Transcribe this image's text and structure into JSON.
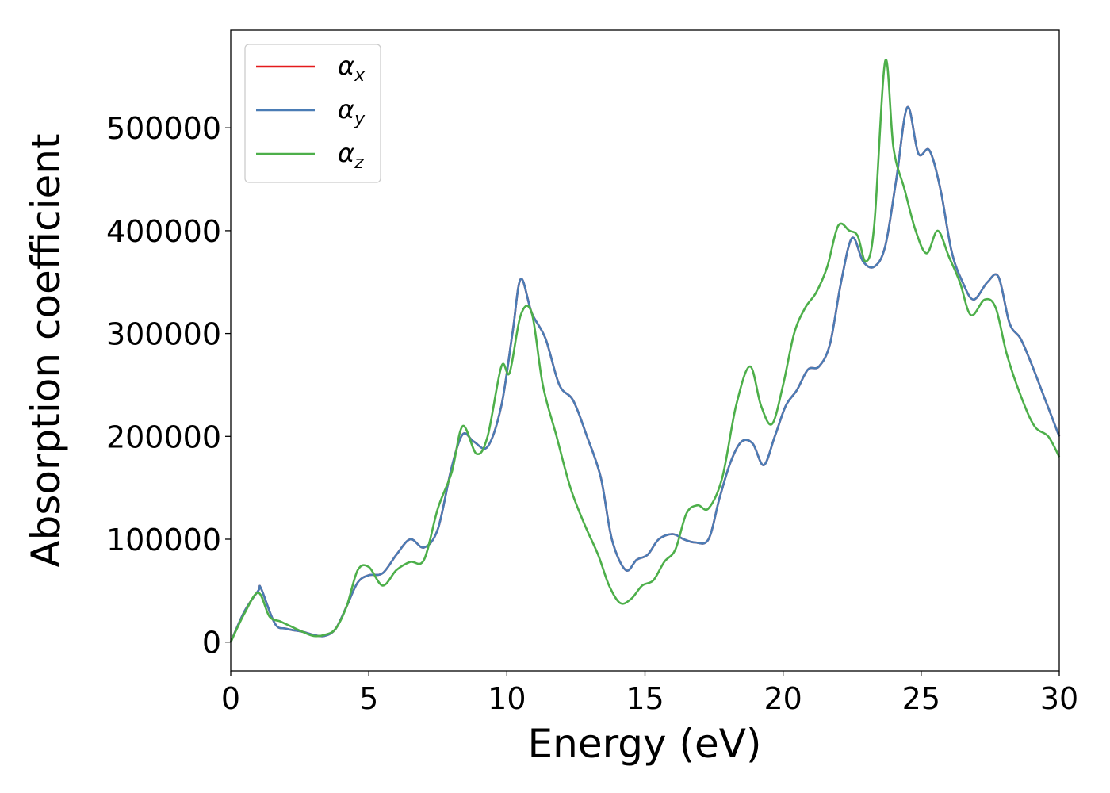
{
  "chart_data": {
    "type": "line",
    "title": "",
    "xlabel": "Energy (eV)",
    "ylabel": "Absorption coefficient",
    "xlim": [
      0,
      30
    ],
    "ylim": [
      -28000,
      595000
    ],
    "xticks": [
      0,
      5,
      10,
      15,
      20,
      25,
      30
    ],
    "yticks": [
      0,
      100000,
      200000,
      300000,
      400000,
      500000
    ],
    "grid": false,
    "legend_position": "top-left",
    "series": [
      {
        "name": "x",
        "symbol": "α",
        "color": "#e41a1c",
        "x": [
          0,
          0.5,
          1.0,
          1.1,
          1.6,
          2.0,
          2.6,
          3.0,
          3.4,
          3.8,
          4.2,
          4.6,
          5.0,
          5.5,
          6.0,
          6.5,
          7.0,
          7.5,
          8.0,
          8.4,
          8.8,
          9.3,
          9.8,
          10.2,
          10.5,
          10.9,
          11.4,
          11.9,
          12.4,
          12.9,
          13.4,
          13.8,
          14.3,
          14.7,
          15.1,
          15.5,
          16.0,
          16.4,
          16.8,
          17.3,
          17.7,
          18.1,
          18.5,
          18.9,
          19.3,
          19.7,
          20.1,
          20.5,
          20.9,
          21.3,
          21.7,
          22.1,
          22.5,
          22.9,
          23.3,
          23.7,
          24.1,
          24.5,
          24.9,
          25.3,
          25.7,
          26.1,
          26.5,
          26.9,
          27.4,
          27.8,
          28.2,
          28.6,
          29.0,
          29.5,
          30.0
        ],
        "values": [
          0,
          30000,
          50000,
          52000,
          18000,
          13000,
          10000,
          7000,
          6000,
          13000,
          35000,
          58000,
          65000,
          67000,
          85000,
          100000,
          92000,
          110000,
          170000,
          202000,
          195000,
          190000,
          230000,
          300000,
          353000,
          320000,
          295000,
          250000,
          235000,
          200000,
          160000,
          100000,
          70000,
          80000,
          85000,
          100000,
          105000,
          100000,
          97000,
          100000,
          140000,
          175000,
          195000,
          193000,
          172000,
          200000,
          230000,
          245000,
          265000,
          268000,
          290000,
          350000,
          393000,
          370000,
          365000,
          385000,
          450000,
          520000,
          475000,
          478000,
          440000,
          380000,
          350000,
          333000,
          350000,
          355000,
          310000,
          295000,
          270000,
          235000,
          200000
        ]
      },
      {
        "name": "y",
        "symbol": "α",
        "color": "#4a7cb5",
        "x": [
          0,
          0.5,
          1.0,
          1.1,
          1.6,
          2.0,
          2.6,
          3.0,
          3.4,
          3.8,
          4.2,
          4.6,
          5.0,
          5.5,
          6.0,
          6.5,
          7.0,
          7.5,
          8.0,
          8.4,
          8.8,
          9.3,
          9.8,
          10.2,
          10.5,
          10.9,
          11.4,
          11.9,
          12.4,
          12.9,
          13.4,
          13.8,
          14.3,
          14.7,
          15.1,
          15.5,
          16.0,
          16.4,
          16.8,
          17.3,
          17.7,
          18.1,
          18.5,
          18.9,
          19.3,
          19.7,
          20.1,
          20.5,
          20.9,
          21.3,
          21.7,
          22.1,
          22.5,
          22.9,
          23.3,
          23.7,
          24.1,
          24.5,
          24.9,
          25.3,
          25.7,
          26.1,
          26.5,
          26.9,
          27.4,
          27.8,
          28.2,
          28.6,
          29.0,
          29.5,
          30.0
        ],
        "values": [
          0,
          30000,
          50000,
          52000,
          18000,
          13000,
          10000,
          7000,
          6000,
          13000,
          35000,
          58000,
          65000,
          67000,
          85000,
          100000,
          92000,
          110000,
          170000,
          202000,
          195000,
          190000,
          230000,
          300000,
          353000,
          320000,
          295000,
          250000,
          235000,
          200000,
          160000,
          100000,
          70000,
          80000,
          85000,
          100000,
          105000,
          100000,
          97000,
          100000,
          140000,
          175000,
          195000,
          193000,
          172000,
          200000,
          230000,
          245000,
          265000,
          268000,
          290000,
          350000,
          393000,
          370000,
          365000,
          385000,
          450000,
          520000,
          475000,
          478000,
          440000,
          380000,
          350000,
          333000,
          350000,
          355000,
          310000,
          295000,
          270000,
          235000,
          200000
        ]
      },
      {
        "name": "z",
        "symbol": "α",
        "color": "#4daf4a",
        "x": [
          0,
          0.5,
          1.0,
          1.4,
          1.8,
          2.2,
          2.6,
          3.0,
          3.4,
          3.8,
          4.2,
          4.6,
          5.0,
          5.5,
          6.0,
          6.5,
          7.0,
          7.5,
          8.0,
          8.4,
          8.9,
          9.3,
          9.8,
          10.1,
          10.5,
          10.9,
          11.3,
          11.8,
          12.3,
          12.8,
          13.3,
          13.7,
          14.1,
          14.5,
          14.9,
          15.3,
          15.7,
          16.1,
          16.5,
          16.9,
          17.3,
          17.8,
          18.3,
          18.8,
          19.2,
          19.6,
          20.0,
          20.4,
          20.8,
          21.2,
          21.6,
          22.0,
          22.4,
          22.7,
          23.0,
          23.3,
          23.7,
          24.0,
          24.4,
          24.8,
          25.2,
          25.6,
          26.0,
          26.4,
          26.8,
          27.3,
          27.7,
          28.1,
          28.6,
          29.1,
          29.6,
          30.0
        ],
        "values": [
          0,
          28000,
          48000,
          25000,
          20000,
          15000,
          10000,
          6000,
          7000,
          13000,
          35000,
          70000,
          73000,
          55000,
          70000,
          78000,
          80000,
          130000,
          165000,
          210000,
          183000,
          200000,
          268000,
          262000,
          318000,
          320000,
          250000,
          200000,
          150000,
          115000,
          85000,
          55000,
          38000,
          42000,
          55000,
          60000,
          78000,
          90000,
          125000,
          133000,
          130000,
          160000,
          230000,
          268000,
          230000,
          212000,
          250000,
          300000,
          325000,
          340000,
          365000,
          405000,
          400000,
          395000,
          370000,
          405000,
          565000,
          480000,
          440000,
          400000,
          378000,
          400000,
          375000,
          350000,
          318000,
          333000,
          325000,
          280000,
          240000,
          210000,
          200000,
          180000
        ]
      }
    ]
  }
}
